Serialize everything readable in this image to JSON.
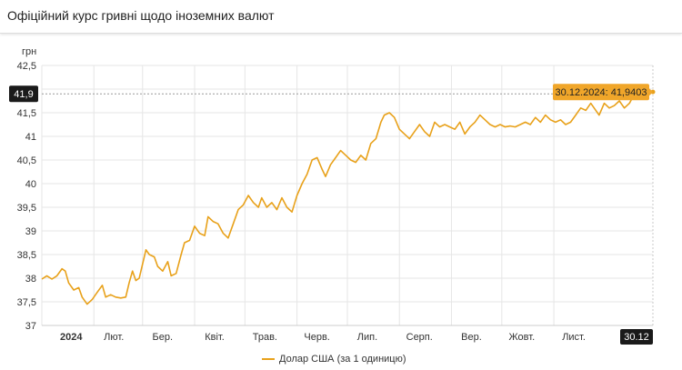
{
  "header": {
    "title": "Офіційний курс гривні щодо іноземних валют"
  },
  "chart_data": {
    "type": "line",
    "unit_label": "грн",
    "ylim": [
      37,
      42.5
    ],
    "y_ticks": [
      {
        "value": 37,
        "label": "37"
      },
      {
        "value": 37.5,
        "label": "37,5"
      },
      {
        "value": 38,
        "label": "38"
      },
      {
        "value": 38.5,
        "label": "38,5"
      },
      {
        "value": 39,
        "label": "39"
      },
      {
        "value": 39.5,
        "label": "39,5"
      },
      {
        "value": 40,
        "label": "40"
      },
      {
        "value": 40.5,
        "label": "40,5"
      },
      {
        "value": 41,
        "label": "41"
      },
      {
        "value": 41.5,
        "label": "41,5"
      },
      {
        "value": 42,
        "label": "42"
      },
      {
        "value": 42.5,
        "label": "42,5"
      }
    ],
    "xlim": [
      "2024-01-01",
      "2024-12-30"
    ],
    "x_ticks": [
      {
        "date": "2024-01-01",
        "label": "2024"
      },
      {
        "date": "2024-02-01",
        "label": "Лют."
      },
      {
        "date": "2024-03-01",
        "label": "Бер."
      },
      {
        "date": "2024-04-01",
        "label": "Квіт."
      },
      {
        "date": "2024-05-01",
        "label": "Трав."
      },
      {
        "date": "2024-06-01",
        "label": "Черв."
      },
      {
        "date": "2024-07-01",
        "label": "Лип."
      },
      {
        "date": "2024-08-01",
        "label": "Серп."
      },
      {
        "date": "2024-09-01",
        "label": "Вер."
      },
      {
        "date": "2024-10-01",
        "label": "Жовт."
      },
      {
        "date": "2024-11-01",
        "label": "Лист."
      }
    ],
    "end_x_label": "30.12",
    "crosshair": {
      "value": 41.9,
      "label": "41,9"
    },
    "tooltip": {
      "date": "2024-12-30",
      "label": "30.12.2024: 41,9403"
    },
    "grid": true,
    "legend_position": "bottom",
    "colors": {
      "series": "#e8a11a",
      "tooltip_bg": "#f0a62a",
      "dark_label_bg": "#1a1a1a",
      "grid": "#e6e6e6"
    },
    "series": [
      {
        "name": "Долар США (за 1 одиницю)",
        "points": [
          [
            "2024-01-01",
            37.98
          ],
          [
            "2024-01-04",
            38.05
          ],
          [
            "2024-01-07",
            37.98
          ],
          [
            "2024-01-10",
            38.05
          ],
          [
            "2024-01-13",
            38.2
          ],
          [
            "2024-01-15",
            38.15
          ],
          [
            "2024-01-17",
            37.9
          ],
          [
            "2024-01-20",
            37.75
          ],
          [
            "2024-01-23",
            37.8
          ],
          [
            "2024-01-25",
            37.6
          ],
          [
            "2024-01-28",
            37.45
          ],
          [
            "2024-01-31",
            37.55
          ],
          [
            "2024-02-03",
            37.7
          ],
          [
            "2024-02-06",
            37.85
          ],
          [
            "2024-02-08",
            37.6
          ],
          [
            "2024-02-11",
            37.65
          ],
          [
            "2024-02-14",
            37.6
          ],
          [
            "2024-02-17",
            37.58
          ],
          [
            "2024-02-20",
            37.6
          ],
          [
            "2024-02-22",
            37.9
          ],
          [
            "2024-02-24",
            38.15
          ],
          [
            "2024-02-26",
            37.95
          ],
          [
            "2024-02-28",
            38.0
          ],
          [
            "2024-03-01",
            38.3
          ],
          [
            "2024-03-03",
            38.6
          ],
          [
            "2024-03-05",
            38.5
          ],
          [
            "2024-03-08",
            38.45
          ],
          [
            "2024-03-10",
            38.25
          ],
          [
            "2024-03-13",
            38.15
          ],
          [
            "2024-03-16",
            38.35
          ],
          [
            "2024-03-18",
            38.05
          ],
          [
            "2024-03-21",
            38.1
          ],
          [
            "2024-03-24",
            38.5
          ],
          [
            "2024-03-26",
            38.75
          ],
          [
            "2024-03-29",
            38.8
          ],
          [
            "2024-04-01",
            39.1
          ],
          [
            "2024-04-04",
            38.95
          ],
          [
            "2024-04-07",
            38.9
          ],
          [
            "2024-04-09",
            39.3
          ],
          [
            "2024-04-12",
            39.2
          ],
          [
            "2024-04-15",
            39.15
          ],
          [
            "2024-04-18",
            38.95
          ],
          [
            "2024-04-21",
            38.85
          ],
          [
            "2024-04-24",
            39.15
          ],
          [
            "2024-04-27",
            39.45
          ],
          [
            "2024-04-30",
            39.55
          ],
          [
            "2024-05-03",
            39.75
          ],
          [
            "2024-05-06",
            39.6
          ],
          [
            "2024-05-09",
            39.5
          ],
          [
            "2024-05-11",
            39.7
          ],
          [
            "2024-05-14",
            39.5
          ],
          [
            "2024-05-17",
            39.6
          ],
          [
            "2024-05-20",
            39.45
          ],
          [
            "2024-05-23",
            39.7
          ],
          [
            "2024-05-26",
            39.5
          ],
          [
            "2024-05-29",
            39.4
          ],
          [
            "2024-06-01",
            39.75
          ],
          [
            "2024-06-04",
            40.0
          ],
          [
            "2024-06-07",
            40.2
          ],
          [
            "2024-06-10",
            40.5
          ],
          [
            "2024-06-13",
            40.55
          ],
          [
            "2024-06-16",
            40.3
          ],
          [
            "2024-06-18",
            40.15
          ],
          [
            "2024-06-21",
            40.4
          ],
          [
            "2024-06-24",
            40.55
          ],
          [
            "2024-06-27",
            40.7
          ],
          [
            "2024-06-30",
            40.6
          ],
          [
            "2024-07-03",
            40.5
          ],
          [
            "2024-07-06",
            40.45
          ],
          [
            "2024-07-09",
            40.6
          ],
          [
            "2024-07-12",
            40.5
          ],
          [
            "2024-07-15",
            40.85
          ],
          [
            "2024-07-18",
            40.95
          ],
          [
            "2024-07-21",
            41.3
          ],
          [
            "2024-07-23",
            41.45
          ],
          [
            "2024-07-26",
            41.5
          ],
          [
            "2024-07-29",
            41.4
          ],
          [
            "2024-08-01",
            41.15
          ],
          [
            "2024-08-04",
            41.05
          ],
          [
            "2024-08-07",
            40.95
          ],
          [
            "2024-08-10",
            41.1
          ],
          [
            "2024-08-13",
            41.25
          ],
          [
            "2024-08-16",
            41.1
          ],
          [
            "2024-08-19",
            41.0
          ],
          [
            "2024-08-22",
            41.3
          ],
          [
            "2024-08-25",
            41.2
          ],
          [
            "2024-08-28",
            41.25
          ],
          [
            "2024-08-31",
            41.2
          ],
          [
            "2024-09-03",
            41.15
          ],
          [
            "2024-09-06",
            41.3
          ],
          [
            "2024-09-09",
            41.05
          ],
          [
            "2024-09-12",
            41.2
          ],
          [
            "2024-09-15",
            41.3
          ],
          [
            "2024-09-18",
            41.45
          ],
          [
            "2024-09-21",
            41.35
          ],
          [
            "2024-09-24",
            41.25
          ],
          [
            "2024-09-27",
            41.2
          ],
          [
            "2024-09-30",
            41.25
          ],
          [
            "2024-10-03",
            41.2
          ],
          [
            "2024-10-06",
            41.22
          ],
          [
            "2024-10-09",
            41.2
          ],
          [
            "2024-10-12",
            41.25
          ],
          [
            "2024-10-15",
            41.3
          ],
          [
            "2024-10-18",
            41.25
          ],
          [
            "2024-10-21",
            41.4
          ],
          [
            "2024-10-24",
            41.3
          ],
          [
            "2024-10-27",
            41.45
          ],
          [
            "2024-10-30",
            41.35
          ],
          [
            "2024-11-02",
            41.3
          ],
          [
            "2024-11-05",
            41.35
          ],
          [
            "2024-11-08",
            41.25
          ],
          [
            "2024-11-11",
            41.3
          ],
          [
            "2024-11-14",
            41.45
          ],
          [
            "2024-11-17",
            41.6
          ],
          [
            "2024-11-20",
            41.55
          ],
          [
            "2024-11-23",
            41.7
          ],
          [
            "2024-11-26",
            41.55
          ],
          [
            "2024-11-28",
            41.45
          ],
          [
            "2024-12-01",
            41.7
          ],
          [
            "2024-12-04",
            41.6
          ],
          [
            "2024-12-07",
            41.65
          ],
          [
            "2024-12-10",
            41.75
          ],
          [
            "2024-12-13",
            41.6
          ],
          [
            "2024-12-16",
            41.7
          ],
          [
            "2024-12-19",
            41.9
          ],
          [
            "2024-12-22",
            42.0
          ],
          [
            "2024-12-25",
            41.9
          ],
          [
            "2024-12-28",
            41.95
          ],
          [
            "2024-12-30",
            41.94
          ]
        ]
      }
    ]
  }
}
